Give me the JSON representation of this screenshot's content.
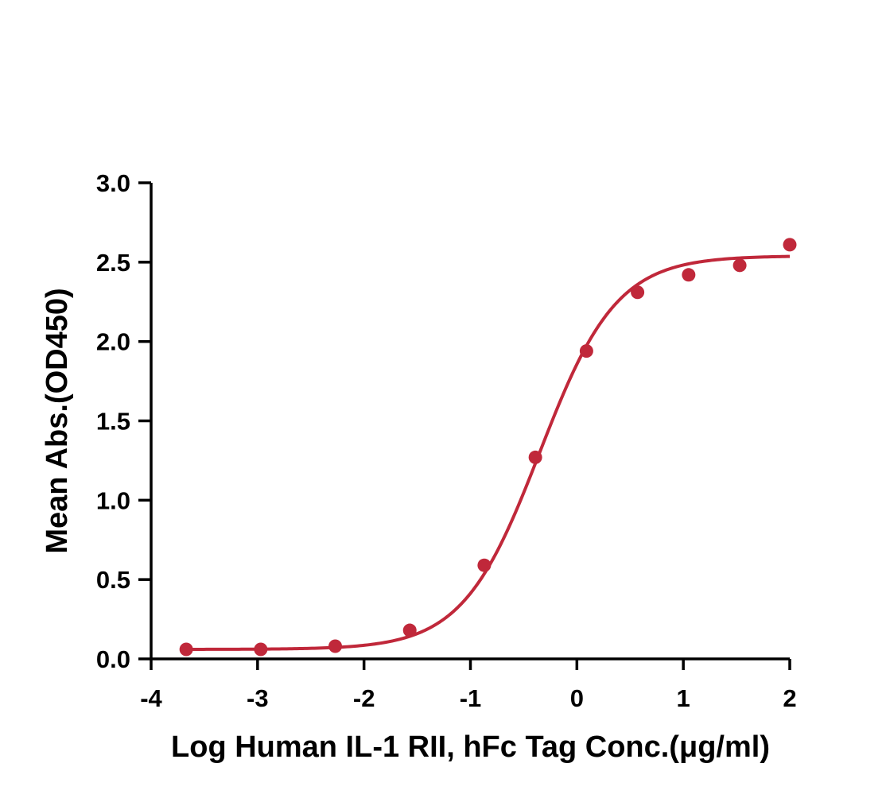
{
  "chart_data": {
    "type": "scatter",
    "title": "",
    "xlabel": "Log Human IL-1 RII, hFc Tag Conc.(μg/ml)",
    "ylabel": "Mean Abs.(OD450)",
    "xlim": [
      -4,
      2
    ],
    "ylim": [
      0,
      3.0
    ],
    "x_ticks": [
      "-4",
      "-3",
      "-2",
      "-1",
      "0",
      "1",
      "2"
    ],
    "y_ticks": [
      "0.0",
      "0.5",
      "1.0",
      "1.5",
      "2.0",
      "2.5",
      "3.0"
    ],
    "grid": false,
    "series": [
      {
        "marker_color": "#c0283a",
        "points": [
          {
            "x": -3.67,
            "y": 0.06
          },
          {
            "x": -2.97,
            "y": 0.06
          },
          {
            "x": -2.27,
            "y": 0.08
          },
          {
            "x": -1.57,
            "y": 0.18
          },
          {
            "x": -0.87,
            "y": 0.59
          },
          {
            "x": -0.39,
            "y": 1.27
          },
          {
            "x": 0.09,
            "y": 1.94
          },
          {
            "x": 0.57,
            "y": 2.31
          },
          {
            "x": 1.05,
            "y": 2.42
          },
          {
            "x": 1.53,
            "y": 2.48
          },
          {
            "x": 2.0,
            "y": 2.61
          }
        ],
        "fit_curve": {
          "model": "four-parameter logistic",
          "bottom": 0.06,
          "top": 2.54,
          "log_ec50": -0.35,
          "hill_slope": 1.2,
          "color": "#c0283a"
        }
      }
    ]
  }
}
